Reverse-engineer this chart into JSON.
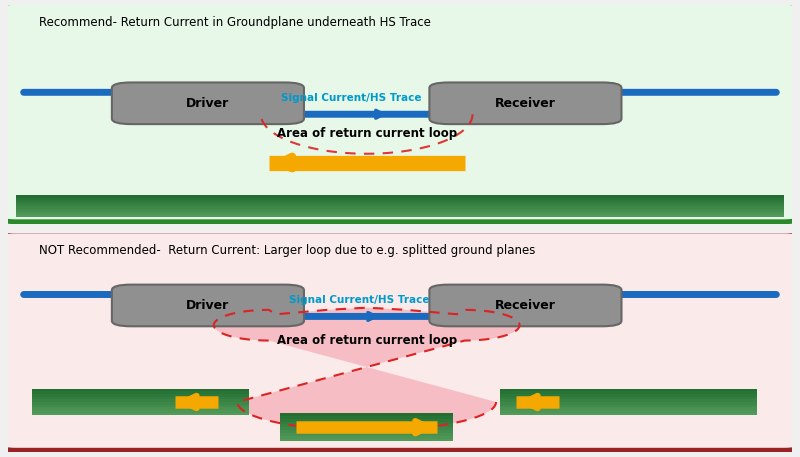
{
  "bg_color": "#f0f0f0",
  "top_box": {
    "bg": "#e8f8e8",
    "border": "#2a8a2a",
    "title": "Recommend- Return Current in Groundplane underneath HS Trace"
  },
  "bot_box": {
    "bg": "#faeaea",
    "border": "#9b2222",
    "title": "NOT Recommended-  Return Current: Larger loop due to e.g. splitted ground planes"
  },
  "driver_label": "Driver",
  "receiver_label": "Receiver",
  "signal_label": "Signal Current/HS Trace",
  "return_label": "Area of return current loop",
  "trace_color": "#1a6abf",
  "arrow_color": "#f5a800",
  "chip_face": "#909090",
  "chip_edge": "#666666",
  "green_board_dark": "#1e6b2e",
  "green_board_light": "#4a9a5a",
  "pink_loop": "#f5b0b8",
  "red_dash": "#dd2222"
}
